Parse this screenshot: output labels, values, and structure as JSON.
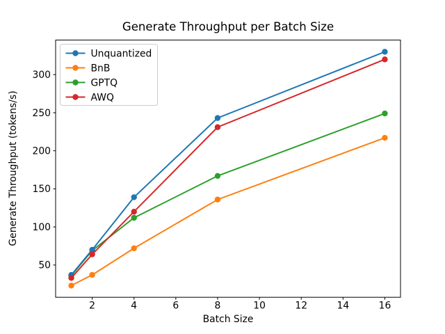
{
  "chart_data": {
    "type": "line",
    "title": "Generate Throughput per Batch Size",
    "xlabel": "Batch Size",
    "ylabel": "Generate Throughput (tokens/s)",
    "categories": [
      1,
      2,
      4,
      8,
      16
    ],
    "series": [
      {
        "name": "Unquantized",
        "color": "#1f77b4",
        "values": [
          37,
          70,
          139,
          243,
          330
        ]
      },
      {
        "name": "BnB",
        "color": "#ff7f0e",
        "values": [
          23,
          37,
          72,
          136,
          217
        ]
      },
      {
        "name": "GPTQ",
        "color": "#2ca02c",
        "values": [
          36,
          69,
          112,
          167,
          249
        ]
      },
      {
        "name": "AWQ",
        "color": "#d62728",
        "values": [
          33,
          64,
          120,
          231,
          320
        ]
      }
    ],
    "xticks": [
      2,
      4,
      6,
      8,
      10,
      12,
      14,
      16
    ],
    "yticks": [
      50,
      100,
      150,
      200,
      250,
      300
    ],
    "xlim": [
      0.25,
      16.75
    ],
    "ylim": [
      7.65,
      345.35
    ],
    "legend": {
      "position": "upper left",
      "entries": [
        "Unquantized",
        "BnB",
        "GPTQ",
        "AWQ"
      ]
    },
    "marker": "circle",
    "grid": false,
    "frame_color": "#000000"
  }
}
